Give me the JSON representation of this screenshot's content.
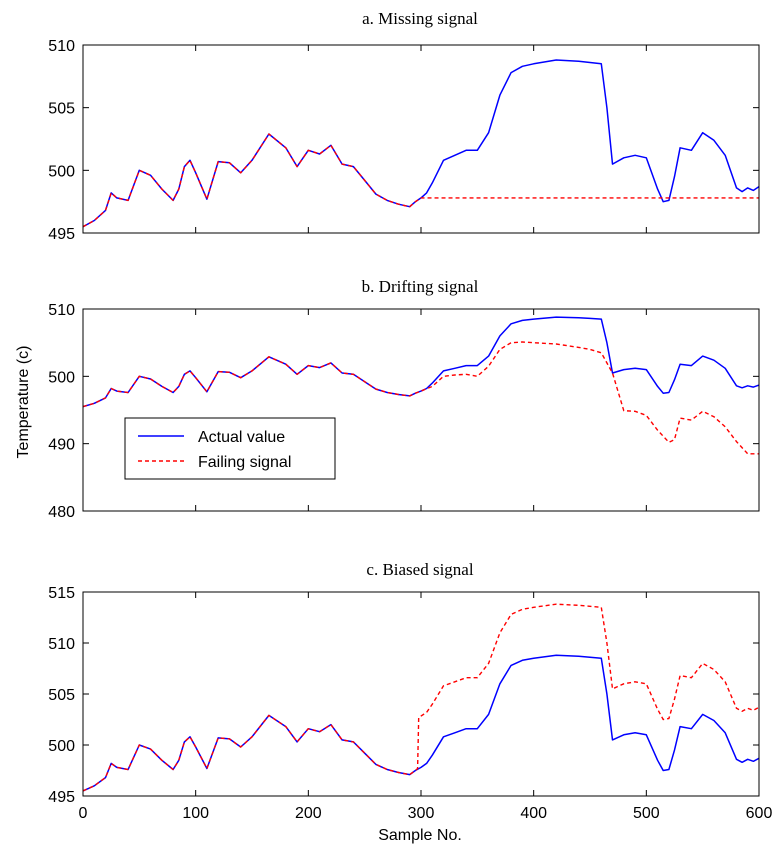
{
  "figure": {
    "ylabel": "Temperature (c)",
    "xlabel": "Sample  No.",
    "legend": {
      "placement": "inside-lower-left of panel b",
      "actual": "Actual value",
      "failing": "Failing signal"
    },
    "colors": {
      "actual": "#0000ff",
      "failing": "#ff0000",
      "axes": "#000000"
    }
  },
  "chart_data": [
    {
      "type": "line",
      "title": "a. Missing signal",
      "xlim": [
        0,
        600
      ],
      "ylim": [
        495,
        510
      ],
      "yticks": [
        495,
        500,
        505,
        510
      ],
      "xticks": [],
      "series": [
        {
          "name": "Actual value",
          "style": "solid",
          "x": [
            0,
            10,
            20,
            25,
            30,
            40,
            50,
            60,
            70,
            80,
            85,
            90,
            95,
            100,
            110,
            120,
            130,
            140,
            150,
            165,
            180,
            190,
            200,
            210,
            220,
            230,
            240,
            250,
            260,
            270,
            280,
            290,
            295,
            300,
            305,
            310,
            320,
            330,
            340,
            350,
            360,
            370,
            380,
            390,
            400,
            420,
            440,
            450,
            460,
            465,
            470,
            480,
            490,
            500,
            510,
            515,
            520,
            525,
            530,
            540,
            550,
            560,
            570,
            580,
            585,
            590,
            595,
            600
          ],
          "y": [
            495.5,
            496.0,
            496.8,
            498.2,
            497.8,
            497.6,
            500.0,
            499.6,
            498.5,
            497.6,
            498.5,
            500.3,
            500.8,
            499.8,
            497.7,
            500.7,
            500.6,
            499.8,
            500.8,
            502.9,
            501.8,
            500.3,
            501.6,
            501.3,
            502.0,
            500.5,
            500.3,
            499.2,
            498.1,
            497.6,
            497.3,
            497.1,
            497.5,
            497.8,
            498.2,
            499.0,
            500.8,
            501.2,
            501.6,
            501.6,
            503.0,
            506.0,
            507.8,
            508.3,
            508.5,
            508.8,
            508.7,
            508.6,
            508.5,
            505.0,
            500.5,
            501.0,
            501.2,
            501.0,
            498.5,
            497.5,
            497.6,
            499.5,
            501.8,
            501.6,
            503.0,
            502.4,
            501.2,
            498.6,
            498.3,
            498.6,
            498.4,
            498.7
          ]
        },
        {
          "name": "Failing signal",
          "style": "dashed",
          "x": [
            0,
            10,
            20,
            25,
            30,
            40,
            50,
            60,
            70,
            80,
            85,
            90,
            95,
            100,
            110,
            120,
            130,
            140,
            150,
            165,
            180,
            190,
            200,
            210,
            220,
            230,
            240,
            250,
            260,
            270,
            280,
            290,
            295,
            300,
            600
          ],
          "y": [
            495.5,
            496.0,
            496.8,
            498.2,
            497.8,
            497.6,
            500.0,
            499.6,
            498.5,
            497.6,
            498.5,
            500.3,
            500.8,
            499.8,
            497.7,
            500.7,
            500.6,
            499.8,
            500.8,
            502.9,
            501.8,
            500.3,
            501.6,
            501.3,
            502.0,
            500.5,
            500.3,
            499.2,
            498.1,
            497.6,
            497.3,
            497.1,
            497.5,
            497.8,
            497.8
          ]
        }
      ]
    },
    {
      "type": "line",
      "title": "b. Drifting signal",
      "xlim": [
        0,
        600
      ],
      "ylim": [
        480,
        510
      ],
      "yticks": [
        480,
        490,
        500,
        510
      ],
      "xticks": [],
      "series": [
        {
          "name": "Actual value",
          "style": "solid",
          "x": [
            0,
            10,
            20,
            25,
            30,
            40,
            50,
            60,
            70,
            80,
            85,
            90,
            95,
            100,
            110,
            120,
            130,
            140,
            150,
            165,
            180,
            190,
            200,
            210,
            220,
            230,
            240,
            250,
            260,
            270,
            280,
            290,
            295,
            300,
            305,
            310,
            320,
            330,
            340,
            350,
            360,
            370,
            380,
            390,
            400,
            420,
            440,
            450,
            460,
            465,
            470,
            480,
            490,
            500,
            510,
            515,
            520,
            525,
            530,
            540,
            550,
            560,
            570,
            580,
            585,
            590,
            595,
            600
          ],
          "y": [
            495.5,
            496.0,
            496.8,
            498.2,
            497.8,
            497.6,
            500.0,
            499.6,
            498.5,
            497.6,
            498.5,
            500.3,
            500.8,
            499.8,
            497.7,
            500.7,
            500.6,
            499.8,
            500.8,
            502.9,
            501.8,
            500.3,
            501.6,
            501.3,
            502.0,
            500.5,
            500.3,
            499.2,
            498.1,
            497.6,
            497.3,
            497.1,
            497.5,
            497.8,
            498.2,
            499.0,
            500.8,
            501.2,
            501.6,
            501.6,
            503.0,
            506.0,
            507.8,
            508.3,
            508.5,
            508.8,
            508.7,
            508.6,
            508.5,
            505.0,
            500.5,
            501.0,
            501.2,
            501.0,
            498.5,
            497.5,
            497.6,
            499.5,
            501.8,
            501.6,
            503.0,
            502.4,
            501.2,
            498.6,
            498.3,
            498.6,
            498.4,
            498.7
          ]
        },
        {
          "name": "Failing signal",
          "style": "dashed",
          "x": [
            0,
            10,
            20,
            25,
            30,
            40,
            50,
            60,
            70,
            80,
            85,
            90,
            95,
            100,
            110,
            120,
            130,
            140,
            150,
            165,
            180,
            190,
            200,
            210,
            220,
            230,
            240,
            250,
            260,
            270,
            280,
            290,
            295,
            300,
            310,
            320,
            330,
            340,
            350,
            360,
            370,
            380,
            390,
            400,
            420,
            440,
            450,
            460,
            470,
            480,
            490,
            500,
            510,
            520,
            525,
            530,
            540,
            550,
            560,
            570,
            580,
            590,
            600
          ],
          "y": [
            495.5,
            496.0,
            496.8,
            498.2,
            497.8,
            497.6,
            500.0,
            499.6,
            498.5,
            497.6,
            498.5,
            500.3,
            500.8,
            499.8,
            497.7,
            500.7,
            500.6,
            499.8,
            500.8,
            502.9,
            501.8,
            500.3,
            501.6,
            501.3,
            502.0,
            500.5,
            500.3,
            499.2,
            498.1,
            497.6,
            497.3,
            497.1,
            497.5,
            497.8,
            498.5,
            500.0,
            500.2,
            500.3,
            500.0,
            501.5,
            504.0,
            505.0,
            505.1,
            505.0,
            504.8,
            504.3,
            504.0,
            503.5,
            500.5,
            494.9,
            494.8,
            494.2,
            492.0,
            490.2,
            490.6,
            493.8,
            493.5,
            494.8,
            494.0,
            492.5,
            490.3,
            488.5,
            488.5
          ]
        }
      ]
    },
    {
      "type": "line",
      "title": "c. Biased signal",
      "xlim": [
        0,
        600
      ],
      "ylim": [
        495,
        515
      ],
      "yticks": [
        495,
        500,
        505,
        510,
        515
      ],
      "xticks": [
        0,
        100,
        200,
        300,
        400,
        500,
        600
      ],
      "series": [
        {
          "name": "Actual value",
          "style": "solid",
          "x": [
            0,
            10,
            20,
            25,
            30,
            40,
            50,
            60,
            70,
            80,
            85,
            90,
            95,
            100,
            110,
            120,
            130,
            140,
            150,
            165,
            180,
            190,
            200,
            210,
            220,
            230,
            240,
            250,
            260,
            270,
            280,
            290,
            295,
            300,
            305,
            310,
            320,
            330,
            340,
            350,
            360,
            370,
            380,
            390,
            400,
            420,
            440,
            450,
            460,
            465,
            470,
            480,
            490,
            500,
            510,
            515,
            520,
            525,
            530,
            540,
            550,
            560,
            570,
            580,
            585,
            590,
            595,
            600
          ],
          "y": [
            495.5,
            496.0,
            496.8,
            498.2,
            497.8,
            497.6,
            500.0,
            499.6,
            498.5,
            497.6,
            498.5,
            500.3,
            500.8,
            499.8,
            497.7,
            500.7,
            500.6,
            499.8,
            500.8,
            502.9,
            501.8,
            500.3,
            501.6,
            501.3,
            502.0,
            500.5,
            500.3,
            499.2,
            498.1,
            497.6,
            497.3,
            497.1,
            497.5,
            497.8,
            498.2,
            499.0,
            500.8,
            501.2,
            501.6,
            501.6,
            503.0,
            506.0,
            507.8,
            508.3,
            508.5,
            508.8,
            508.7,
            508.6,
            508.5,
            505.0,
            500.5,
            501.0,
            501.2,
            501.0,
            498.5,
            497.5,
            497.6,
            499.5,
            501.8,
            501.6,
            503.0,
            502.4,
            501.2,
            498.6,
            498.3,
            498.6,
            498.4,
            498.7
          ]
        },
        {
          "name": "Failing signal",
          "style": "dashed",
          "x": [
            0,
            10,
            20,
            25,
            30,
            40,
            50,
            60,
            70,
            80,
            85,
            90,
            95,
            100,
            110,
            120,
            130,
            140,
            150,
            165,
            180,
            190,
            200,
            210,
            220,
            230,
            240,
            250,
            260,
            270,
            280,
            290,
            295,
            297,
            298,
            305,
            310,
            320,
            330,
            340,
            350,
            360,
            370,
            380,
            390,
            400,
            420,
            440,
            450,
            460,
            465,
            470,
            480,
            490,
            500,
            510,
            515,
            520,
            525,
            530,
            540,
            550,
            560,
            570,
            580,
            585,
            590,
            595,
            600
          ],
          "y": [
            495.5,
            496.0,
            496.8,
            498.2,
            497.8,
            497.6,
            500.0,
            499.6,
            498.5,
            497.6,
            498.5,
            500.3,
            500.8,
            499.8,
            497.7,
            500.7,
            500.6,
            499.8,
            500.8,
            502.9,
            501.8,
            500.3,
            501.6,
            501.3,
            502.0,
            500.5,
            500.3,
            499.2,
            498.1,
            497.6,
            497.3,
            497.1,
            497.5,
            497.7,
            502.7,
            503.2,
            504.0,
            505.8,
            506.2,
            506.6,
            506.6,
            508.0,
            511.0,
            512.8,
            513.3,
            513.5,
            513.8,
            513.7,
            513.6,
            513.5,
            510.0,
            505.5,
            506.0,
            506.2,
            506.0,
            503.5,
            502.5,
            502.6,
            504.5,
            506.8,
            506.6,
            508.0,
            507.4,
            506.2,
            503.6,
            503.3,
            503.6,
            503.4,
            503.7
          ]
        }
      ]
    }
  ]
}
